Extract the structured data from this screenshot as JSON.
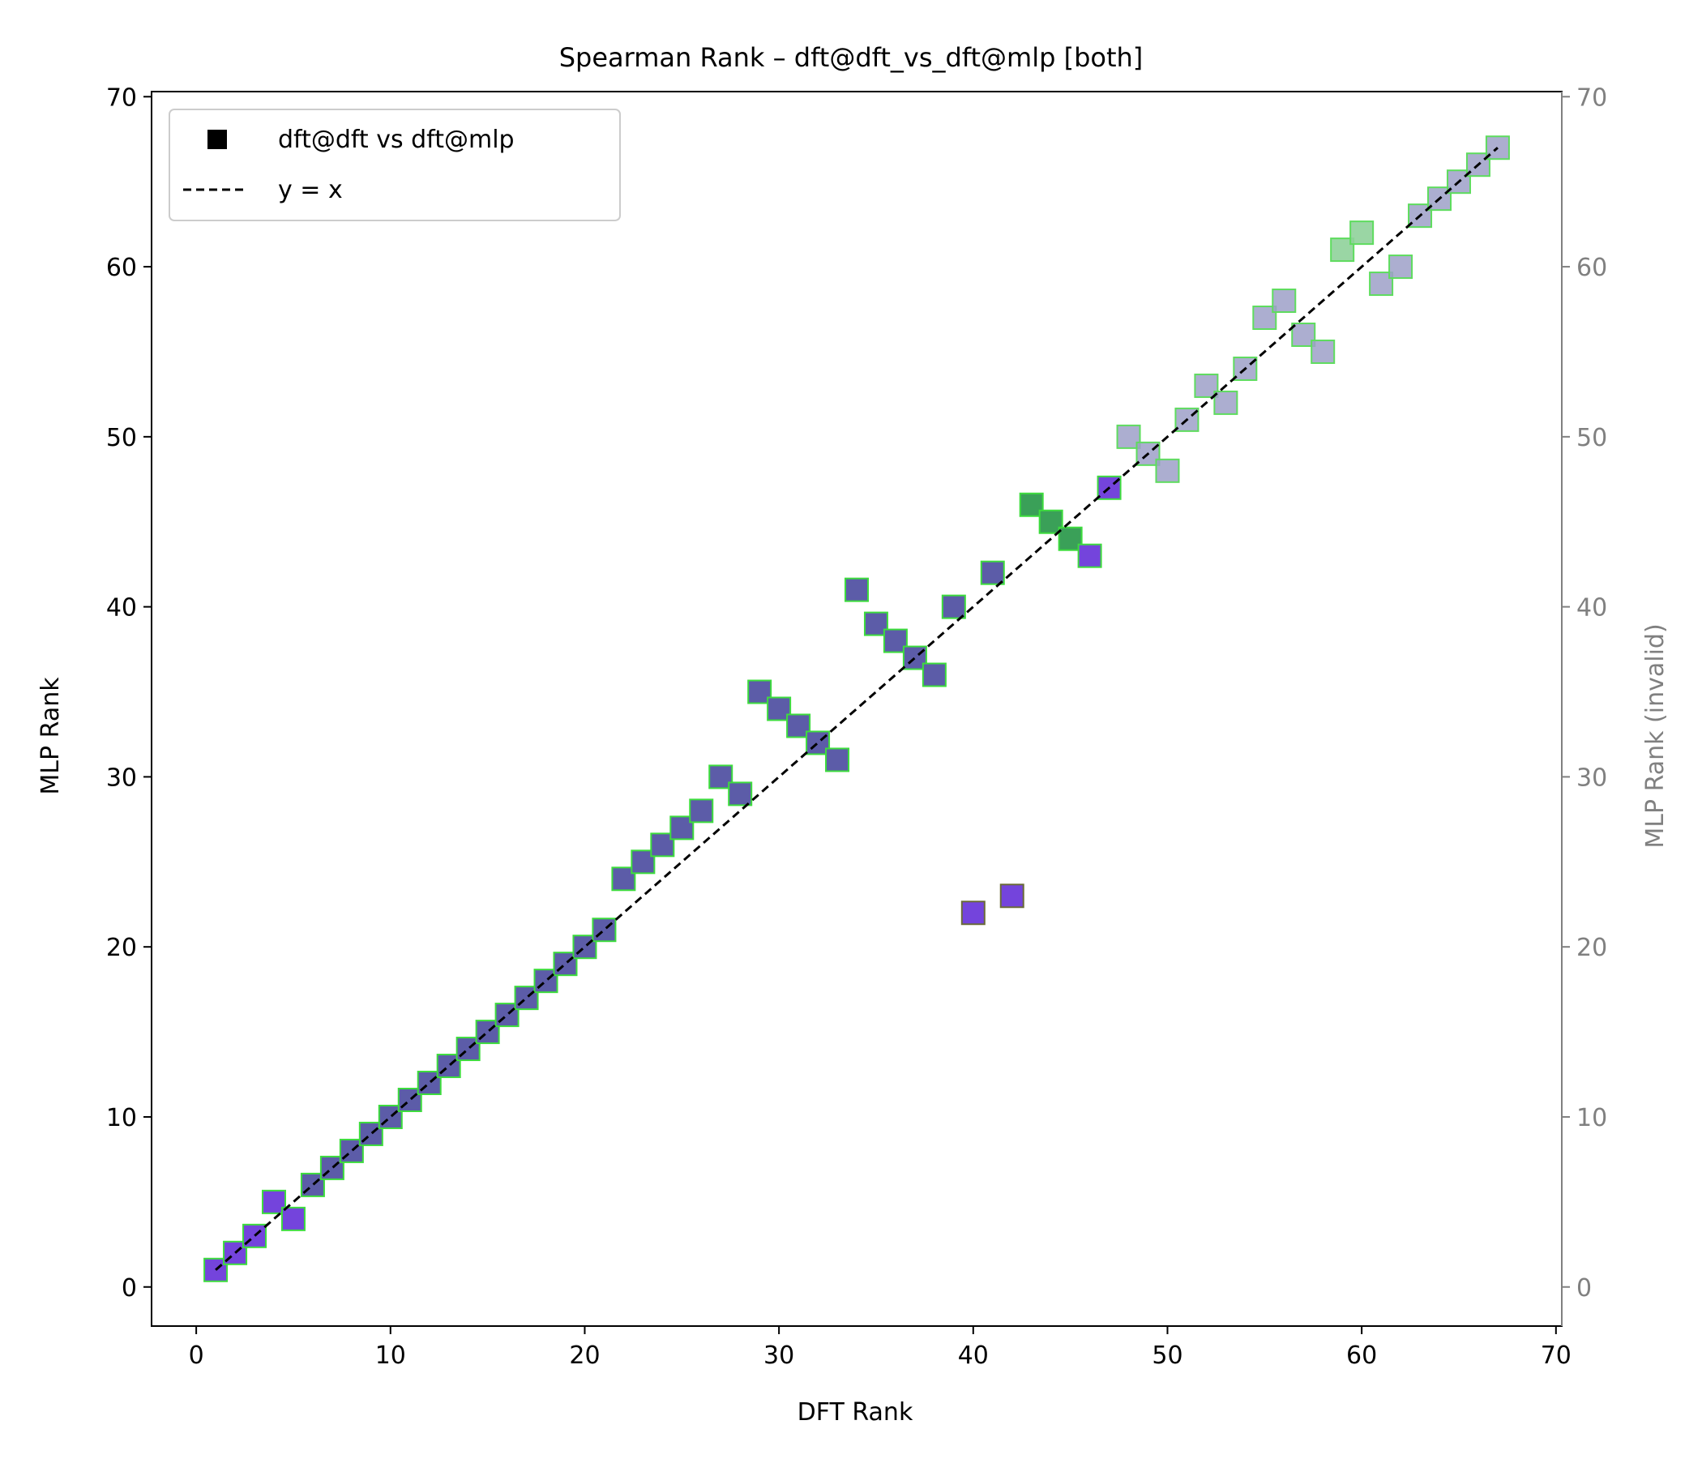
{
  "chart_data": {
    "type": "scatter",
    "title": "Spearman Rank – dft@dft_vs_dft@mlp [both]",
    "xlabel": "DFT Rank",
    "ylabel": "MLP Rank",
    "ylabel_right": "MLP Rank (invalid)",
    "xlim": [
      -2.3,
      70.3
    ],
    "ylim": [
      -2.3,
      70.3
    ],
    "xticks": [
      0,
      10,
      20,
      30,
      40,
      50,
      60,
      70
    ],
    "yticks": [
      0,
      10,
      20,
      30,
      40,
      50,
      60,
      70
    ],
    "right_yticks": [
      0,
      10,
      20,
      30,
      40,
      50,
      60,
      70
    ],
    "legend": {
      "placement": "upper left",
      "entries": [
        {
          "label": "dft@dft vs dft@mlp",
          "marker": "square"
        },
        {
          "label": "y = x",
          "marker": "dashed-line"
        }
      ]
    },
    "reference_line": {
      "label": "y = x",
      "from": [
        1,
        1
      ],
      "to": [
        67,
        67
      ]
    },
    "series": [
      {
        "name": "dft@dft vs dft@mlp",
        "points": [
          [
            1,
            1,
            "v"
          ],
          [
            2,
            2,
            "v"
          ],
          [
            3,
            3,
            "v"
          ],
          [
            4,
            5,
            "v"
          ],
          [
            5,
            4,
            "v"
          ],
          [
            6,
            6,
            "s"
          ],
          [
            7,
            7,
            "s"
          ],
          [
            8,
            8,
            "s"
          ],
          [
            9,
            9,
            "s"
          ],
          [
            10,
            10,
            "s"
          ],
          [
            11,
            11,
            "s"
          ],
          [
            12,
            12,
            "s"
          ],
          [
            13,
            13,
            "s"
          ],
          [
            14,
            14,
            "s"
          ],
          [
            15,
            15,
            "s"
          ],
          [
            16,
            16,
            "s"
          ],
          [
            17,
            17,
            "s"
          ],
          [
            18,
            18,
            "s"
          ],
          [
            19,
            19,
            "s"
          ],
          [
            20,
            20,
            "s"
          ],
          [
            21,
            21,
            "s"
          ],
          [
            22,
            24,
            "s"
          ],
          [
            23,
            25,
            "s"
          ],
          [
            24,
            26,
            "s"
          ],
          [
            25,
            27,
            "s"
          ],
          [
            26,
            28,
            "s"
          ],
          [
            27,
            30,
            "s"
          ],
          [
            28,
            29,
            "s"
          ],
          [
            29,
            35,
            "s"
          ],
          [
            30,
            34,
            "s"
          ],
          [
            31,
            33,
            "s"
          ],
          [
            32,
            32,
            "s"
          ],
          [
            33,
            31,
            "s"
          ],
          [
            34,
            41,
            "s"
          ],
          [
            35,
            39,
            "s"
          ],
          [
            36,
            38,
            "s"
          ],
          [
            37,
            37,
            "s"
          ],
          [
            38,
            36,
            "s"
          ],
          [
            39,
            40,
            "s"
          ],
          [
            41,
            42,
            "s"
          ],
          [
            40,
            22,
            "vo"
          ],
          [
            42,
            23,
            "vo"
          ],
          [
            43,
            46,
            "g"
          ],
          [
            44,
            45,
            "g"
          ],
          [
            45,
            44,
            "g"
          ],
          [
            46,
            43,
            "v"
          ],
          [
            47,
            47,
            "v"
          ],
          [
            48,
            50,
            "l"
          ],
          [
            49,
            49,
            "l"
          ],
          [
            50,
            48,
            "l"
          ],
          [
            51,
            51,
            "l"
          ],
          [
            52,
            53,
            "l"
          ],
          [
            53,
            52,
            "l"
          ],
          [
            54,
            54,
            "l"
          ],
          [
            55,
            57,
            "l"
          ],
          [
            56,
            58,
            "l"
          ],
          [
            57,
            56,
            "l"
          ],
          [
            58,
            55,
            "l"
          ],
          [
            59,
            61,
            "lg"
          ],
          [
            60,
            62,
            "lg"
          ],
          [
            61,
            59,
            "l"
          ],
          [
            62,
            60,
            "l"
          ],
          [
            63,
            63,
            "l"
          ],
          [
            64,
            64,
            "l"
          ],
          [
            65,
            65,
            "l"
          ],
          [
            66,
            66,
            "l"
          ],
          [
            67,
            67,
            "l"
          ]
        ]
      }
    ],
    "colors": {
      "v": {
        "fill": "#7444dc",
        "stroke": "#3ddc3d",
        "opacity": 1
      },
      "vo": {
        "fill": "#7444dc",
        "stroke": "#6b6b3a",
        "opacity": 1
      },
      "s": {
        "fill": "#5c5ca8",
        "stroke": "#3ddc3d",
        "opacity": 1
      },
      "g": {
        "fill": "#3aa058",
        "stroke": "#3ddc3d",
        "opacity": 1
      },
      "l": {
        "fill": "#9ea0c8",
        "stroke": "#5edc5e",
        "opacity": 0.85
      },
      "lg": {
        "fill": "#8fd29a",
        "stroke": "#5edc5e",
        "opacity": 0.9
      },
      "right_axis": "#808080",
      "reference_line": "#000000"
    }
  }
}
